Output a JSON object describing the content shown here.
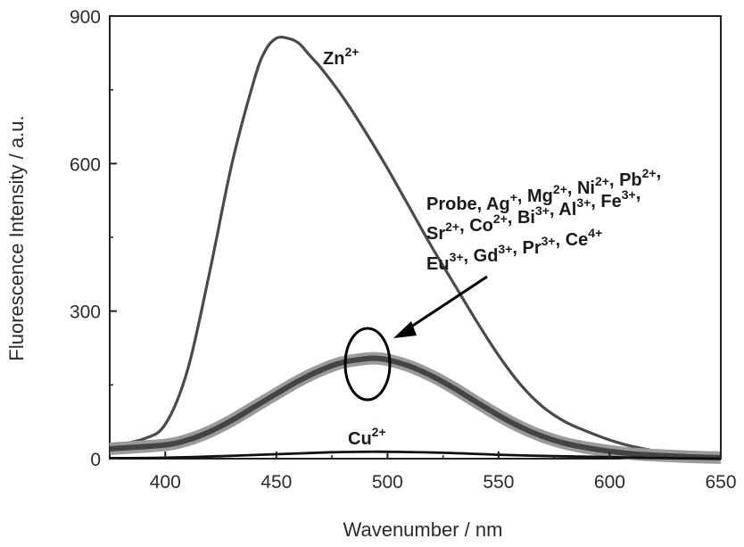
{
  "chart_data": {
    "type": "line",
    "xlabel": "Wavenumber / nm",
    "ylabel": "Fluorescence Intensity / a.u.",
    "xlim": [
      375,
      650
    ],
    "ylim": [
      0,
      900
    ],
    "xticks": [
      400,
      450,
      500,
      550,
      600,
      650
    ],
    "yticks": [
      0,
      300,
      600,
      900
    ],
    "grid": false,
    "series": [
      {
        "name": "Zn2+",
        "color": "#4a4a4a",
        "x": [
          375,
          390,
          400,
          410,
          420,
          430,
          440,
          445,
          450,
          455,
          460,
          465,
          470,
          480,
          490,
          500,
          510,
          520,
          530,
          540,
          550,
          560,
          570,
          580,
          590,
          600,
          610,
          620,
          630,
          640,
          650
        ],
        "y": [
          25,
          40,
          70,
          180,
          380,
          600,
          770,
          830,
          855,
          855,
          845,
          820,
          795,
          735,
          665,
          590,
          510,
          430,
          355,
          280,
          210,
          150,
          105,
          75,
          55,
          38,
          25,
          16,
          9,
          5,
          2
        ]
      },
      {
        "name": "Probe, Ag+, Mg2+, Ni2+, Pb2+, Sr2+, Co2+, Bi3+, Al3+, Fe3+, Eu3+, Gd3+, Pr3+, Ce4+",
        "color": "#555555",
        "x": [
          375,
          400,
          410,
          420,
          430,
          440,
          450,
          460,
          470,
          480,
          490,
          495,
          500,
          510,
          520,
          530,
          540,
          550,
          560,
          570,
          580,
          590,
          600,
          610,
          620,
          630,
          640,
          650
        ],
        "y": [
          20,
          28,
          38,
          55,
          78,
          105,
          132,
          158,
          180,
          196,
          203,
          204,
          201,
          188,
          168,
          143,
          115,
          88,
          64,
          45,
          31,
          22,
          15,
          10,
          7,
          5,
          3,
          2
        ]
      },
      {
        "name": "Cu2+",
        "color": "#111111",
        "x": [
          375,
          400,
          425,
          450,
          475,
          490,
          500,
          525,
          550,
          575,
          600,
          625,
          650
        ],
        "y": [
          1,
          2,
          5,
          9,
          13,
          14,
          14,
          12,
          8,
          5,
          3,
          1,
          0
        ]
      }
    ],
    "annotations": [
      {
        "base": "Zn",
        "sup": "2+"
      },
      {
        "base": "Cu",
        "sup": "2+"
      },
      {
        "lines": [
          [
            [
              "Probe, Ag",
              "+"
            ],
            [
              ", Mg",
              "2+"
            ],
            [
              ", Ni",
              "2+"
            ],
            [
              ", Pb",
              "2+"
            ],
            [
              ",",
              ""
            ]
          ],
          [
            [
              "Sr",
              "2+"
            ],
            [
              ", Co",
              "2+"
            ],
            [
              ", Bi",
              "3+"
            ],
            [
              ", Al",
              "3+"
            ],
            [
              ", Fe",
              "3+"
            ],
            [
              ",",
              ""
            ]
          ],
          [
            [
              "Eu",
              "3+"
            ],
            [
              ", Gd",
              "3+"
            ],
            [
              ", Pr",
              "3+"
            ],
            [
              ", Ce",
              "4+"
            ]
          ]
        ]
      }
    ]
  }
}
